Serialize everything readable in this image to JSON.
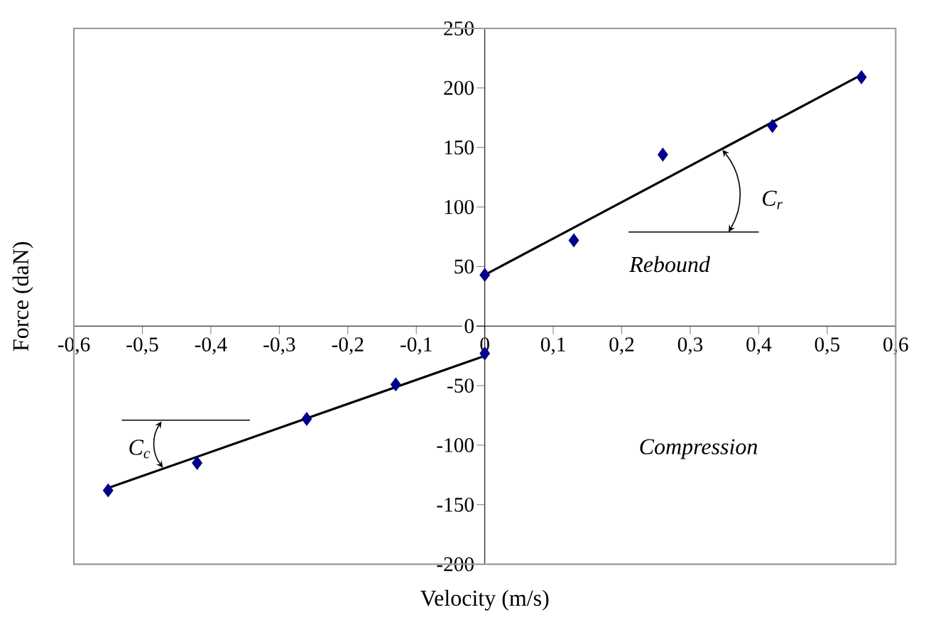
{
  "chart_data": {
    "type": "scatter",
    "xlabel": "Velocity (m/s)",
    "ylabel": "Force (daN)",
    "xlim": [
      -0.6,
      0.6
    ],
    "ylim": [
      -200,
      250
    ],
    "xticks": [
      {
        "value": -0.6,
        "label": "-0,6"
      },
      {
        "value": -0.5,
        "label": "-0,5"
      },
      {
        "value": -0.4,
        "label": "-0,4"
      },
      {
        "value": -0.3,
        "label": "-0,3"
      },
      {
        "value": -0.2,
        "label": "-0,2"
      },
      {
        "value": -0.1,
        "label": "-0,1"
      },
      {
        "value": 0,
        "label": "0"
      },
      {
        "value": 0.1,
        "label": "0,1"
      },
      {
        "value": 0.2,
        "label": "0,2"
      },
      {
        "value": 0.3,
        "label": "0,3"
      },
      {
        "value": 0.4,
        "label": "0,4"
      },
      {
        "value": 0.5,
        "label": "0,5"
      },
      {
        "value": 0.6,
        "label": "0,6"
      }
    ],
    "yticks": [
      -200,
      -150,
      -100,
      -50,
      0,
      50,
      100,
      150,
      200,
      250
    ],
    "marker": "diamond",
    "grid": false,
    "series": [
      {
        "color": "#00008b",
        "x": [
          -0.55,
          -0.42,
          -0.26,
          -0.13,
          0,
          0,
          0.13,
          0.26,
          0.42,
          0.55
        ],
        "values": [
          -138,
          -115,
          -78,
          -49,
          -23,
          43,
          72,
          144,
          168,
          209
        ]
      },
      {
        "type": "line",
        "color": "#000000",
        "marker": "none",
        "x": [
          0,
          0.55
        ],
        "values": [
          43,
          211
        ]
      },
      {
        "type": "line",
        "color": "#000000",
        "marker": "none",
        "x": [
          -0.55,
          0
        ],
        "values": [
          -136,
          -25
        ]
      }
    ],
    "annotations": [
      "Rebound",
      "Compression",
      "C$_{r}$",
      "C$_{c}$"
    ]
  }
}
